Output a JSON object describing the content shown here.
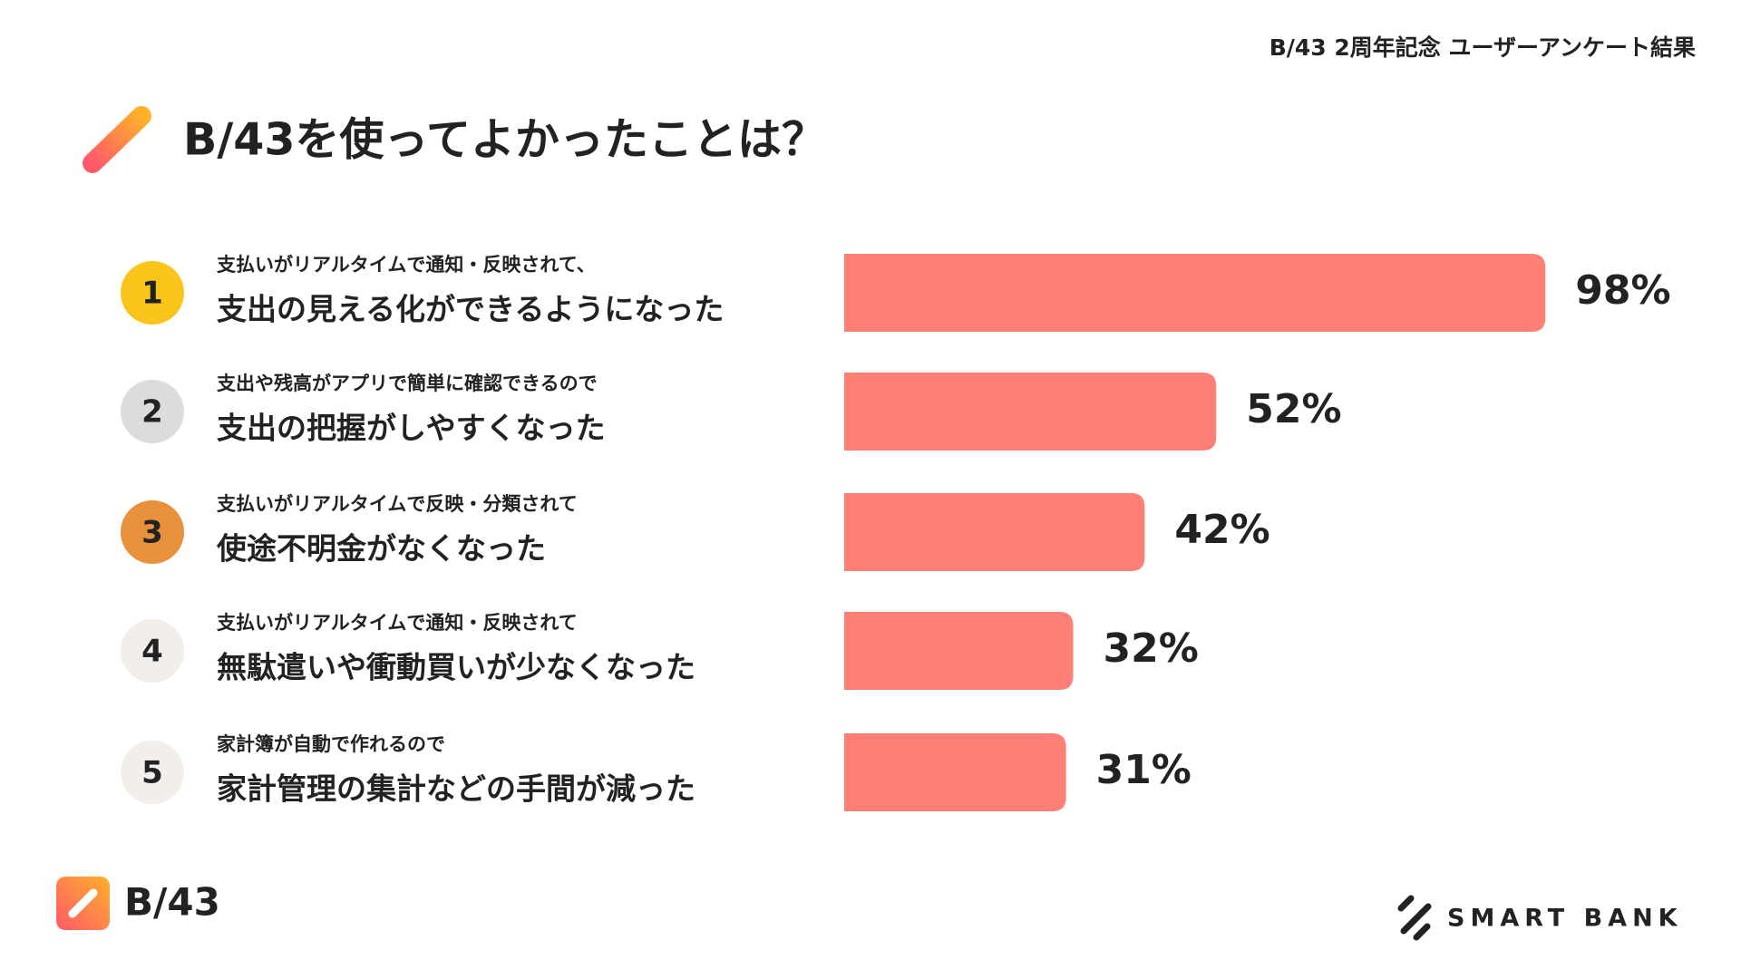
{
  "header": "B/43 2周年記念 ユーザーアンケート結果",
  "chart_data": {
    "type": "bar",
    "title": "B/43を使ってよかったことは？",
    "ranks": [
      1,
      2,
      3,
      4,
      5
    ],
    "rank_colors": [
      "#f9c51a",
      "#dcdcdc",
      "#e8913d",
      "#f2eee9",
      "#f2eee9"
    ],
    "notes": [
      "支払いがリアルタイムで通知・反映されて、",
      "支出や残高がアプリで簡単に確認できるので",
      "支払いがリアルタイムで反映・分類されて",
      "支払いがリアルタイムで通知・反映されて",
      "家計簿が自動で作れるので"
    ],
    "categories": [
      "支出の見える化ができるようになった",
      "支出の把握がしやすくなった",
      "使途不明金がなくなった",
      "無駄遣いや衝動買いが少なくなった",
      "家計管理の集計などの手間が減った"
    ],
    "values": [
      98,
      52,
      42,
      32,
      31
    ],
    "value_labels": [
      "98%",
      "52%",
      "42%",
      "32%",
      "31%"
    ],
    "color": "#fd7f75"
  },
  "footer": {
    "logo": "B/43",
    "company": "SMART BANK"
  }
}
